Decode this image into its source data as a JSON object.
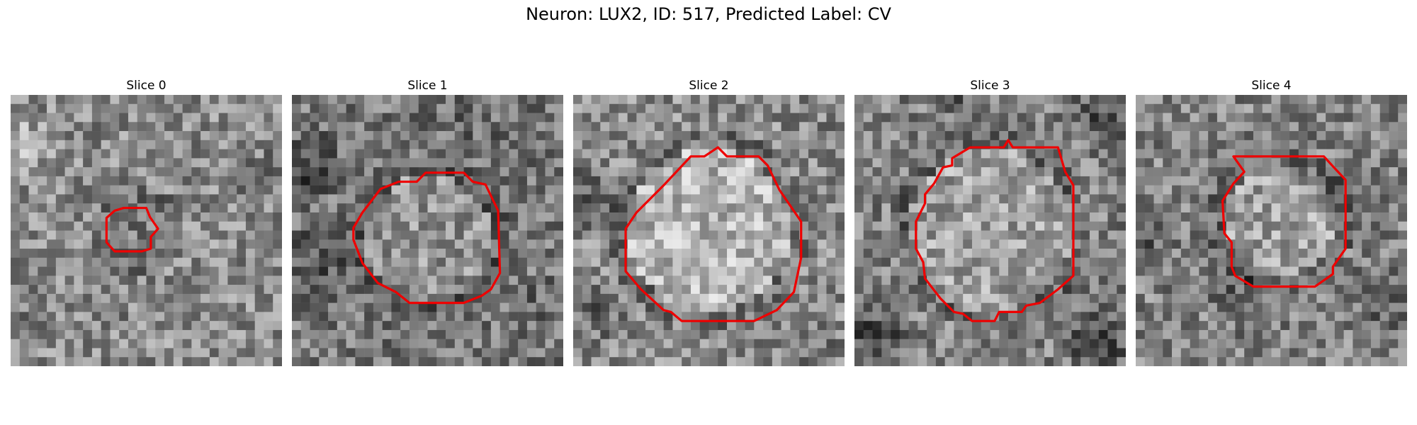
{
  "figure": {
    "title": "Neuron: LUX2, ID: 517, Predicted Label: CV",
    "contour_color": "#ee0000",
    "panels": [
      {
        "label": "Slice 0"
      },
      {
        "label": "Slice 1"
      },
      {
        "label": "Slice 2"
      },
      {
        "label": "Slice 3"
      },
      {
        "label": "Slice 4"
      }
    ]
  }
}
